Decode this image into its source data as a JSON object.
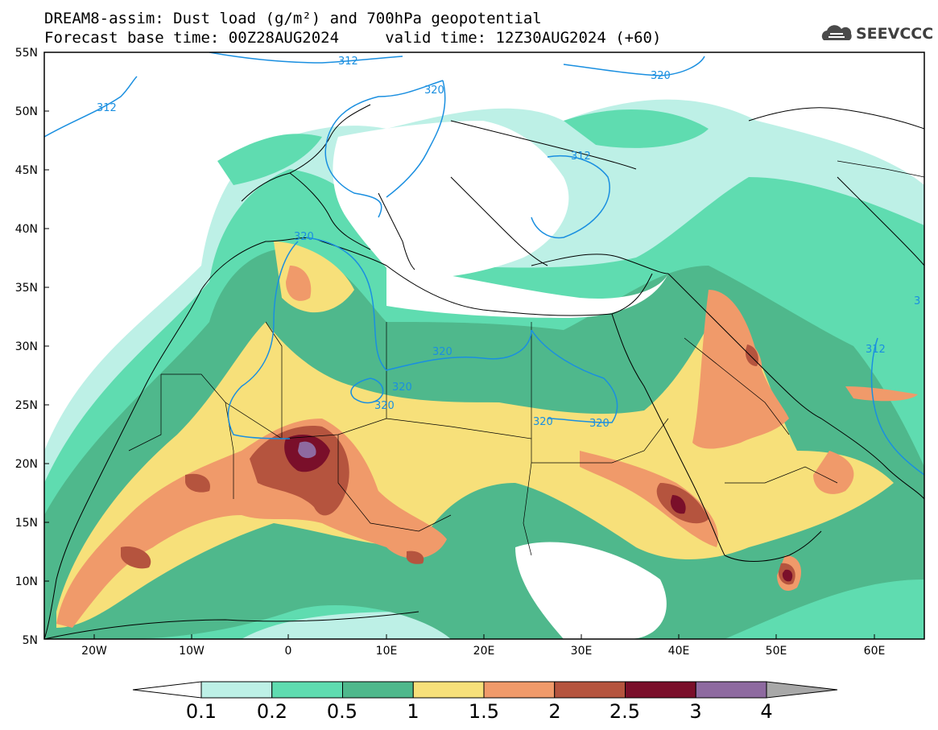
{
  "title": {
    "line1": "DREAM8-assim: Dust load (g/m²) and 700hPa geopotential",
    "line2": "Forecast base time: 00Z28AUG2024     valid time: 12Z30AUG2024 (+60)"
  },
  "logo": {
    "text": "SEEVCCC",
    "icon": "cloud-icon"
  },
  "axes": {
    "lat_labels": [
      "55N",
      "50N",
      "45N",
      "40N",
      "35N",
      "30N",
      "25N",
      "20N",
      "15N",
      "10N",
      "5N"
    ],
    "lon_labels": [
      "20W",
      "10W",
      "0",
      "10E",
      "20E",
      "30E",
      "40E",
      "50E",
      "60E"
    ]
  },
  "contours": {
    "labels": [
      "312",
      "312",
      "320",
      "320",
      "312",
      "320",
      "320",
      "320",
      "320",
      "320",
      "320",
      "312",
      "3"
    ]
  },
  "colorbar": {
    "labels": [
      "0.1",
      "0.2",
      "0.5",
      "1",
      "1.5",
      "2",
      "2.5",
      "3",
      "4"
    ],
    "colors": [
      "#bdf0e6",
      "#5fdcb0",
      "#4fb88c",
      "#f7e07a",
      "#f09a6a",
      "#b5543e",
      "#7a0f2a",
      "#8e6aa0",
      "#a8a8a8"
    ]
  },
  "palette": {
    "c1": "#bdf0e6",
    "c2": "#5fdcb0",
    "c3": "#4fb88c",
    "c4": "#f7e07a",
    "c5": "#f09a6a",
    "c6": "#b5543e",
    "c7": "#7a0f2a",
    "c8": "#8e6aa0",
    "contour": "#1a8fe0"
  }
}
